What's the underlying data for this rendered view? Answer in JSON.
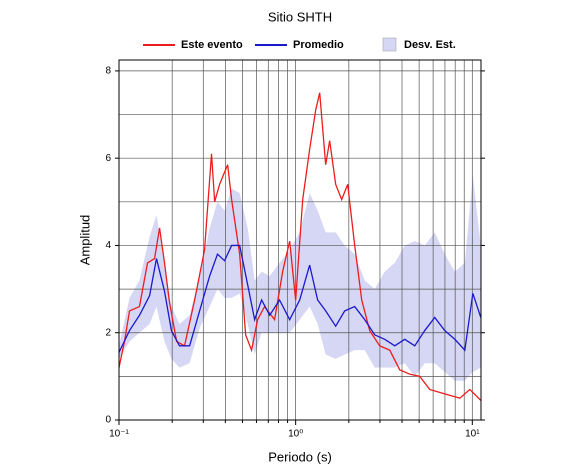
{
  "chart_data": {
    "type": "line",
    "title": "Sitio SHTH",
    "xlabel": "Periodo (s)",
    "ylabel": "Amplitud",
    "xscale": "log",
    "xlim": [
      0.1,
      11.2
    ],
    "ylim": [
      0,
      8.25
    ],
    "xticks": [
      {
        "value": 0.1,
        "label": "10⁻¹"
      },
      {
        "value": 1,
        "label": "10⁰"
      },
      {
        "value": 10,
        "label": "10¹"
      }
    ],
    "xgrid": [
      0.2,
      0.3,
      0.4,
      0.5,
      0.6,
      0.7,
      0.8,
      0.9,
      2,
      3,
      4,
      5,
      6,
      7,
      8,
      9
    ],
    "yticks": [
      0,
      2,
      4,
      6,
      8
    ],
    "ygrid": [
      1,
      3,
      5,
      7
    ],
    "grid": true,
    "legend": "top",
    "series": [
      {
        "name": "Este evento",
        "color": "#ee1c1c",
        "x": [
          0.1,
          0.1074,
          0.1147,
          0.1306,
          0.145,
          0.159,
          0.1697,
          0.181,
          0.193,
          0.212,
          0.235,
          0.268,
          0.305,
          0.334,
          0.348,
          0.371,
          0.412,
          0.434,
          0.482,
          0.521,
          0.563,
          0.609,
          0.667,
          0.76,
          0.844,
          0.925,
          1,
          1.096,
          1.2,
          1.298,
          1.368,
          1.479,
          1.558,
          1.685,
          1.822,
          1.97,
          2.159,
          2.366,
          2.625,
          2.992,
          3.409,
          3.884,
          4.425,
          5.04,
          5.74,
          6.98,
          8.5,
          9.68,
          11.17
        ],
        "values": [
          1.2,
          1.8,
          2.5,
          2.6,
          3.6,
          3.7,
          4.4,
          3.6,
          2.7,
          1.8,
          1.7,
          2.75,
          3.9,
          6.1,
          5.0,
          5.4,
          5.85,
          5.05,
          3.8,
          1.95,
          1.6,
          2.3,
          2.6,
          2.3,
          3.4,
          4.1,
          2.75,
          5.05,
          6.2,
          7.1,
          7.5,
          5.85,
          6.4,
          5.4,
          5.05,
          5.4,
          4.0,
          2.75,
          2.05,
          1.7,
          1.6,
          1.15,
          1.05,
          1.0,
          0.7,
          0.6,
          0.5,
          0.7,
          0.45
        ]
      },
      {
        "name": "Promedio",
        "color": "#1a1acc",
        "x": [
          0.1,
          0.1147,
          0.1306,
          0.149,
          0.163,
          0.181,
          0.198,
          0.22,
          0.251,
          0.286,
          0.326,
          0.361,
          0.396,
          0.434,
          0.482,
          0.535,
          0.586,
          0.642,
          0.713,
          0.811,
          0.925,
          1.054,
          1.2,
          1.332,
          1.479,
          1.685,
          1.895,
          2.159,
          2.46,
          2.803,
          3.193,
          3.639,
          4.146,
          4.723,
          5.38,
          6.13,
          6.98,
          7.96,
          9.07,
          10.07,
          11.17
        ],
        "values": [
          1.55,
          2.05,
          2.4,
          2.85,
          3.7,
          2.95,
          2.05,
          1.7,
          1.7,
          2.5,
          3.3,
          3.8,
          3.65,
          4.0,
          4.0,
          3.1,
          2.3,
          2.75,
          2.4,
          2.75,
          2.3,
          2.75,
          3.55,
          2.75,
          2.5,
          2.15,
          2.5,
          2.6,
          2.3,
          1.95,
          1.85,
          1.7,
          1.85,
          1.7,
          2.05,
          2.35,
          2.05,
          1.85,
          1.6,
          2.9,
          2.35
        ]
      },
      {
        "name": "Desv. Est.",
        "color": "#d6d6f5",
        "band": true,
        "x": [
          0.1,
          0.1147,
          0.1306,
          0.149,
          0.163,
          0.181,
          0.198,
          0.22,
          0.251,
          0.286,
          0.326,
          0.361,
          0.396,
          0.434,
          0.482,
          0.535,
          0.586,
          0.642,
          0.713,
          0.811,
          0.925,
          1.054,
          1.2,
          1.332,
          1.479,
          1.685,
          1.895,
          2.159,
          2.46,
          2.803,
          3.193,
          3.639,
          4.146,
          4.723,
          5.38,
          6.13,
          6.98,
          7.96,
          9.07,
          10.07,
          11.17
        ],
        "upper": [
          1.7,
          2.8,
          3.2,
          4.2,
          4.7,
          3.6,
          2.6,
          2.2,
          2.4,
          3.3,
          4.4,
          5.0,
          4.8,
          5.3,
          5.2,
          4.4,
          3.2,
          3.4,
          3.3,
          3.6,
          3.9,
          4.3,
          5.2,
          4.8,
          4.3,
          4.3,
          4.0,
          3.8,
          3.2,
          3.0,
          3.4,
          3.6,
          4.0,
          4.1,
          4.0,
          4.3,
          3.8,
          3.4,
          3.6,
          5.6,
          4.0
        ],
        "lower": [
          1.4,
          1.8,
          2.0,
          2.2,
          2.6,
          1.8,
          1.4,
          1.2,
          1.3,
          2.1,
          2.6,
          3.0,
          2.8,
          2.8,
          2.9,
          2.2,
          1.5,
          2.0,
          2.0,
          2.0,
          2.0,
          2.3,
          2.6,
          2.2,
          1.5,
          1.4,
          1.5,
          1.6,
          1.6,
          1.2,
          1.2,
          1.2,
          1.3,
          1.0,
          1.3,
          1.3,
          1.1,
          0.9,
          0.9,
          1.1,
          1.2
        ]
      }
    ]
  }
}
